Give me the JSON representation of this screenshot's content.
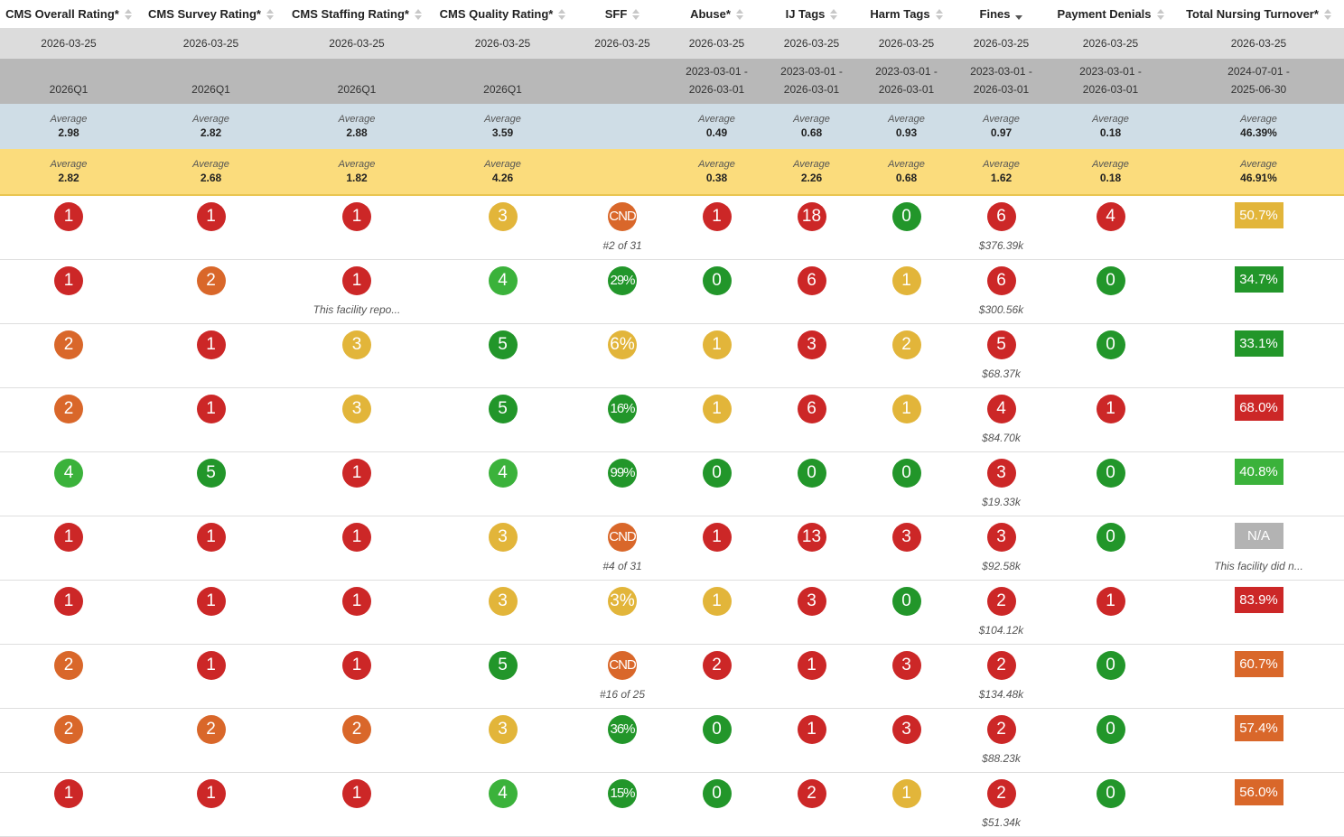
{
  "columns": [
    {
      "label": "CMS Overall Rating*",
      "sort": "none"
    },
    {
      "label": "CMS Survey Rating*",
      "sort": "none"
    },
    {
      "label": "CMS Staffing Rating*",
      "sort": "none"
    },
    {
      "label": "CMS Quality Rating*",
      "sort": "none"
    },
    {
      "label": "SFF",
      "sort": "none"
    },
    {
      "label": "Abuse*",
      "sort": "none"
    },
    {
      "label": "IJ Tags",
      "sort": "none"
    },
    {
      "label": "Harm Tags",
      "sort": "none"
    },
    {
      "label": "Fines",
      "sort": "desc"
    },
    {
      "label": "Payment Denials",
      "sort": "none"
    },
    {
      "label": "Total Nursing Turnover*",
      "sort": "none"
    }
  ],
  "dates": [
    "2026-03-25",
    "2026-03-25",
    "2026-03-25",
    "2026-03-25",
    "2026-03-25",
    "2026-03-25",
    "2026-03-25",
    "2026-03-25",
    "2026-03-25",
    "2026-03-25",
    "2026-03-25"
  ],
  "periods": [
    [
      "2026Q1"
    ],
    [
      "2026Q1"
    ],
    [
      "2026Q1"
    ],
    [
      "2026Q1"
    ],
    [],
    [
      "2023-03-01 -",
      "2026-03-01"
    ],
    [
      "2023-03-01 -",
      "2026-03-01"
    ],
    [
      "2023-03-01 -",
      "2026-03-01"
    ],
    [
      "2023-03-01 -",
      "2026-03-01"
    ],
    [
      "2023-03-01 -",
      "2026-03-01"
    ],
    [
      "2024-07-01 -",
      "2025-06-30"
    ]
  ],
  "average_label": "Average",
  "state_averages": [
    "2.98",
    "2.82",
    "2.88",
    "3.59",
    "",
    "0.49",
    "0.68",
    "0.93",
    "0.97",
    "0.18",
    "46.39%"
  ],
  "national_averages": [
    "2.82",
    "2.68",
    "1.82",
    "4.26",
    "",
    "0.38",
    "2.26",
    "0.68",
    "1.62",
    "0.18",
    "46.91%"
  ],
  "colors": {
    "red": "#cc2727",
    "orange": "#d9672a",
    "yellow": "#e2b53a",
    "light_green": "#3bb23b",
    "green": "#22962a",
    "gray": "#b3b3b3"
  },
  "rows": [
    [
      [
        "1",
        "red"
      ],
      [
        "1",
        "red"
      ],
      [
        "1",
        "red"
      ],
      [
        "3",
        "yellow"
      ],
      [
        "CND",
        "orange",
        "#2 of 31"
      ],
      [
        "1",
        "red"
      ],
      [
        "18",
        "red"
      ],
      [
        "0",
        "green"
      ],
      [
        "6",
        "red",
        "$376.39k"
      ],
      [
        "4",
        "red"
      ],
      [
        "50.7%",
        "yellow"
      ]
    ],
    [
      [
        "1",
        "red"
      ],
      [
        "2",
        "orange"
      ],
      [
        "1",
        "red",
        "This facility repo..."
      ],
      [
        "4",
        "lgreen"
      ],
      [
        "29%",
        "green"
      ],
      [
        "0",
        "green"
      ],
      [
        "6",
        "red"
      ],
      [
        "1",
        "yellow"
      ],
      [
        "6",
        "red",
        "$300.56k"
      ],
      [
        "0",
        "green"
      ],
      [
        "34.7%",
        "green"
      ]
    ],
    [
      [
        "2",
        "orange"
      ],
      [
        "1",
        "red"
      ],
      [
        "3",
        "yellow"
      ],
      [
        "5",
        "green"
      ],
      [
        "6%",
        "yellow"
      ],
      [
        "1",
        "yellow"
      ],
      [
        "3",
        "red"
      ],
      [
        "2",
        "yellow"
      ],
      [
        "5",
        "red",
        "$68.37k"
      ],
      [
        "0",
        "green"
      ],
      [
        "33.1%",
        "green"
      ]
    ],
    [
      [
        "2",
        "orange"
      ],
      [
        "1",
        "red"
      ],
      [
        "3",
        "yellow"
      ],
      [
        "5",
        "green"
      ],
      [
        "16%",
        "green"
      ],
      [
        "1",
        "yellow"
      ],
      [
        "6",
        "red"
      ],
      [
        "1",
        "yellow"
      ],
      [
        "4",
        "red",
        "$84.70k"
      ],
      [
        "1",
        "red"
      ],
      [
        "68.0%",
        "red"
      ]
    ],
    [
      [
        "4",
        "lgreen"
      ],
      [
        "5",
        "green"
      ],
      [
        "1",
        "red"
      ],
      [
        "4",
        "lgreen"
      ],
      [
        "99%",
        "green"
      ],
      [
        "0",
        "green"
      ],
      [
        "0",
        "green"
      ],
      [
        "0",
        "green"
      ],
      [
        "3",
        "red",
        "$19.33k"
      ],
      [
        "0",
        "green"
      ],
      [
        "40.8%",
        "lgreen"
      ]
    ],
    [
      [
        "1",
        "red"
      ],
      [
        "1",
        "red"
      ],
      [
        "1",
        "red"
      ],
      [
        "3",
        "yellow"
      ],
      [
        "CND",
        "orange",
        "#4 of 31"
      ],
      [
        "1",
        "red"
      ],
      [
        "13",
        "red"
      ],
      [
        "3",
        "red"
      ],
      [
        "3",
        "red",
        "$92.58k"
      ],
      [
        "0",
        "green"
      ],
      [
        "N/A",
        "gray",
        "This facility did n..."
      ]
    ],
    [
      [
        "1",
        "red"
      ],
      [
        "1",
        "red"
      ],
      [
        "1",
        "red"
      ],
      [
        "3",
        "yellow"
      ],
      [
        "3%",
        "yellow"
      ],
      [
        "1",
        "yellow"
      ],
      [
        "3",
        "red"
      ],
      [
        "0",
        "green"
      ],
      [
        "2",
        "red",
        "$104.12k"
      ],
      [
        "1",
        "red"
      ],
      [
        "83.9%",
        "red"
      ]
    ],
    [
      [
        "2",
        "orange"
      ],
      [
        "1",
        "red"
      ],
      [
        "1",
        "red"
      ],
      [
        "5",
        "green"
      ],
      [
        "CND",
        "orange",
        "#16 of 25"
      ],
      [
        "2",
        "red"
      ],
      [
        "1",
        "red"
      ],
      [
        "3",
        "red"
      ],
      [
        "2",
        "red",
        "$134.48k"
      ],
      [
        "0",
        "green"
      ],
      [
        "60.7%",
        "orange"
      ]
    ],
    [
      [
        "2",
        "orange"
      ],
      [
        "2",
        "orange"
      ],
      [
        "2",
        "orange"
      ],
      [
        "3",
        "yellow"
      ],
      [
        "36%",
        "green"
      ],
      [
        "0",
        "green"
      ],
      [
        "1",
        "red"
      ],
      [
        "3",
        "red"
      ],
      [
        "2",
        "red",
        "$88.23k"
      ],
      [
        "0",
        "green"
      ],
      [
        "57.4%",
        "orange"
      ]
    ],
    [
      [
        "1",
        "red"
      ],
      [
        "1",
        "red"
      ],
      [
        "1",
        "red"
      ],
      [
        "4",
        "lgreen"
      ],
      [
        "15%",
        "green"
      ],
      [
        "0",
        "green"
      ],
      [
        "2",
        "red"
      ],
      [
        "1",
        "yellow"
      ],
      [
        "2",
        "red",
        "$51.34k"
      ],
      [
        "0",
        "green"
      ],
      [
        "56.0%",
        "orange"
      ]
    ]
  ]
}
